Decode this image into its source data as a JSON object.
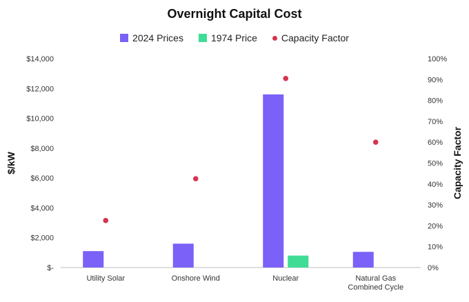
{
  "chart_data": {
    "type": "bar",
    "title": "Overnight Capital Cost",
    "categories": [
      "Utility Solar",
      "Onshore Wind",
      "Nuclear",
      "Natural Gas Combined Cycle"
    ],
    "category_lines": [
      [
        "Utility Solar"
      ],
      [
        "Onshore Wind"
      ],
      [
        "Nuclear"
      ],
      [
        "Natural Gas",
        "Combined Cycle"
      ]
    ],
    "series": [
      {
        "name": "2024 Prices",
        "kind": "bar",
        "axis": "left",
        "color": "#7b61f8",
        "values": [
          1100,
          1600,
          11600,
          1050
        ]
      },
      {
        "name": "1974 Price",
        "kind": "bar",
        "axis": "left",
        "color": "#3fdc96",
        "values": [
          null,
          null,
          800,
          null
        ]
      },
      {
        "name": "Capacity Factor",
        "kind": "scatter",
        "axis": "right",
        "color": "#d6354f",
        "values": [
          22.5,
          42.5,
          90.5,
          60
        ]
      }
    ],
    "ylabel": "$/kW",
    "ylim": [
      0,
      14000
    ],
    "yticks": [
      "$-",
      "$2,000",
      "$4,000",
      "$6,000",
      "$8,000",
      "$10,000",
      "$12,000",
      "$14,000"
    ],
    "y2label": "Capacity Factor",
    "y2lim": [
      0,
      100
    ],
    "y2ticks": [
      "0%",
      "10%",
      "20%",
      "30%",
      "40%",
      "50%",
      "60%",
      "70%",
      "80%",
      "90%",
      "100%"
    ],
    "legend_position": "top",
    "grid": false,
    "baseline_color": "#bfbfbf"
  }
}
